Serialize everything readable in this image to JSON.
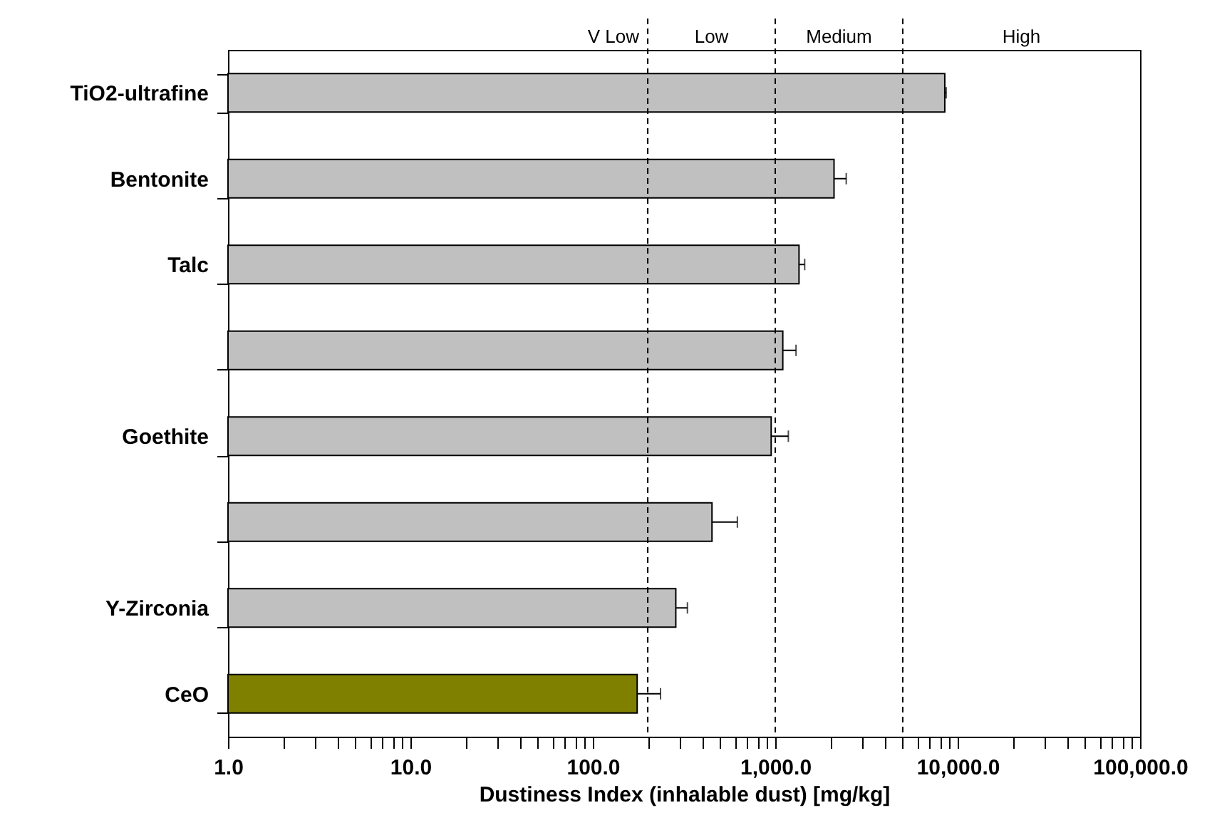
{
  "chart_data": {
    "type": "bar",
    "orientation": "horizontal",
    "xlabel": "Dustiness Index (inhalable dust) [mg/kg]",
    "categories": [
      "TiO2-ultrafine",
      "Bentonite",
      "Talc",
      null,
      "Goethite",
      null,
      "Y-Zirconia",
      "CeO"
    ],
    "values": [
      8500,
      2100,
      1350,
      1100,
      950,
      450,
      285,
      175
    ],
    "errors": [
      150,
      350,
      100,
      200,
      230,
      170,
      45,
      60
    ],
    "colors": [
      "#c0c0c0",
      "#c0c0c0",
      "#c0c0c0",
      "#c0c0c0",
      "#c0c0c0",
      "#c0c0c0",
      "#c0c0c0",
      "#808000"
    ],
    "log": "x",
    "xlim": [
      1,
      100000
    ],
    "xticks": [
      {
        "value": 1,
        "label": "1.0"
      },
      {
        "value": 2,
        "label": null
      },
      {
        "value": 3,
        "label": null
      },
      {
        "value": 4,
        "label": null
      },
      {
        "value": 5,
        "label": null
      },
      {
        "value": 6,
        "label": null
      },
      {
        "value": 7,
        "label": null
      },
      {
        "value": 8,
        "label": null
      },
      {
        "value": 9,
        "label": null
      },
      {
        "value": 10,
        "label": "10.0"
      },
      {
        "value": 20,
        "label": null
      },
      {
        "value": 30,
        "label": null
      },
      {
        "value": 40,
        "label": null
      },
      {
        "value": 50,
        "label": null
      },
      {
        "value": 60,
        "label": null
      },
      {
        "value": 70,
        "label": null
      },
      {
        "value": 80,
        "label": null
      },
      {
        "value": 90,
        "label": null
      },
      {
        "value": 100,
        "label": "100.0"
      },
      {
        "value": 200,
        "label": null
      },
      {
        "value": 300,
        "label": null
      },
      {
        "value": 400,
        "label": null
      },
      {
        "value": 500,
        "label": null
      },
      {
        "value": 600,
        "label": null
      },
      {
        "value": 700,
        "label": null
      },
      {
        "value": 800,
        "label": null
      },
      {
        "value": 900,
        "label": null
      },
      {
        "value": 1000,
        "label": "1,000.0"
      },
      {
        "value": 2000,
        "label": null
      },
      {
        "value": 3000,
        "label": null
      },
      {
        "value": 4000,
        "label": null
      },
      {
        "value": 5000,
        "label": null
      },
      {
        "value": 6000,
        "label": null
      },
      {
        "value": 7000,
        "label": null
      },
      {
        "value": 8000,
        "label": null
      },
      {
        "value": 9000,
        "label": null
      },
      {
        "value": 10000,
        "label": "10,000.0"
      },
      {
        "value": 20000,
        "label": null
      },
      {
        "value": 30000,
        "label": null
      },
      {
        "value": 40000,
        "label": null
      },
      {
        "value": 50000,
        "label": null
      },
      {
        "value": 60000,
        "label": null
      },
      {
        "value": 70000,
        "label": null
      },
      {
        "value": 80000,
        "label": null
      },
      {
        "value": 90000,
        "label": null
      },
      {
        "value": 100000,
        "label": "100,000.0"
      }
    ],
    "ref_lines": [
      {
        "axis": "x",
        "value": 200,
        "line_style": "dashed"
      },
      {
        "axis": "x",
        "value": 1000,
        "line_style": "dashed"
      },
      {
        "axis": "x",
        "value": 5000,
        "line_style": "dashed"
      }
    ],
    "annotations": [
      "V Low",
      "Low",
      "Medium",
      "High"
    ],
    "grid": false
  }
}
